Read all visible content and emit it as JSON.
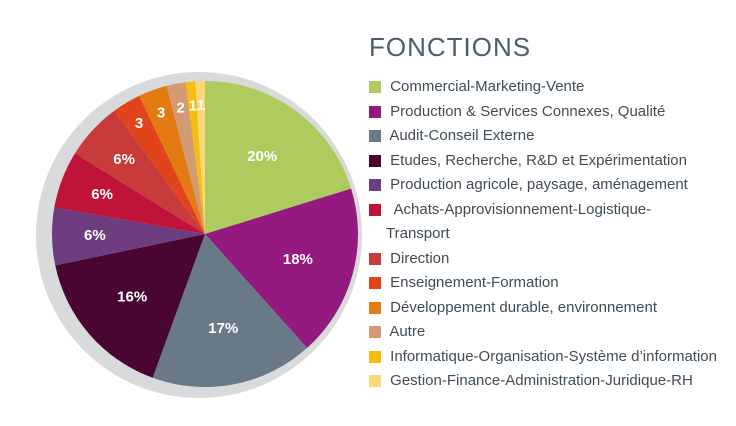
{
  "chart_data": {
    "type": "pie",
    "title": "FONCTIONS",
    "categories": [
      "Commercial-Marketing-Vente",
      "Production & Services Connexes, Qualité",
      "Audit-Conseil Externe",
      "Etudes, Recherche, R&D et Expérimentation",
      "Production agricole, paysage, aménagement",
      "Achats-Approvisionnement-Logistique-Transport",
      "Direction",
      "Enseignement-Formation",
      "Développement durable, environnement",
      "Autre",
      "Informatique-Organisation-Système d'information",
      "Gestion-Finance-Administration-Juridique-RH"
    ],
    "legend_lines": [
      [
        " Commercial-Marketing-Vente"
      ],
      [
        " Production & Services Connexes, Qualité"
      ],
      [
        " Audit-Conseil Externe"
      ],
      [
        " Etudes, Recherche, R&D et Expérimentation"
      ],
      [
        " Production agricole, paysage, aménagement"
      ],
      [
        "  Achats-Approvisionnement-Logistique-",
        "Transport"
      ],
      [
        " Direction"
      ],
      [
        " Enseignement-Formation"
      ],
      [
        " Développement durable, environnement"
      ],
      [
        " Autre"
      ],
      [
        " Informatique-Organisation-Système d’information"
      ],
      [
        " Gestion-Finance-Administration-Juridique-RH"
      ]
    ],
    "values": [
      20,
      18,
      17,
      16,
      6,
      6,
      6,
      3,
      3,
      2,
      1,
      1
    ],
    "labels": [
      "20%",
      "18%",
      "17%",
      "16%",
      "6%",
      "6%",
      "6%",
      "3",
      "3",
      "2",
      "1",
      "1"
    ],
    "colors": [
      "#aecb5e",
      "#951a80",
      "#697a86",
      "#4a0633",
      "#6e3d80",
      "#c0133a",
      "#c93a3b",
      "#e1441b",
      "#e47b12",
      "#d49a73",
      "#f5bd11",
      "#fbd77a"
    ],
    "legend": "right",
    "start": "12 o'clock, clockwise"
  }
}
